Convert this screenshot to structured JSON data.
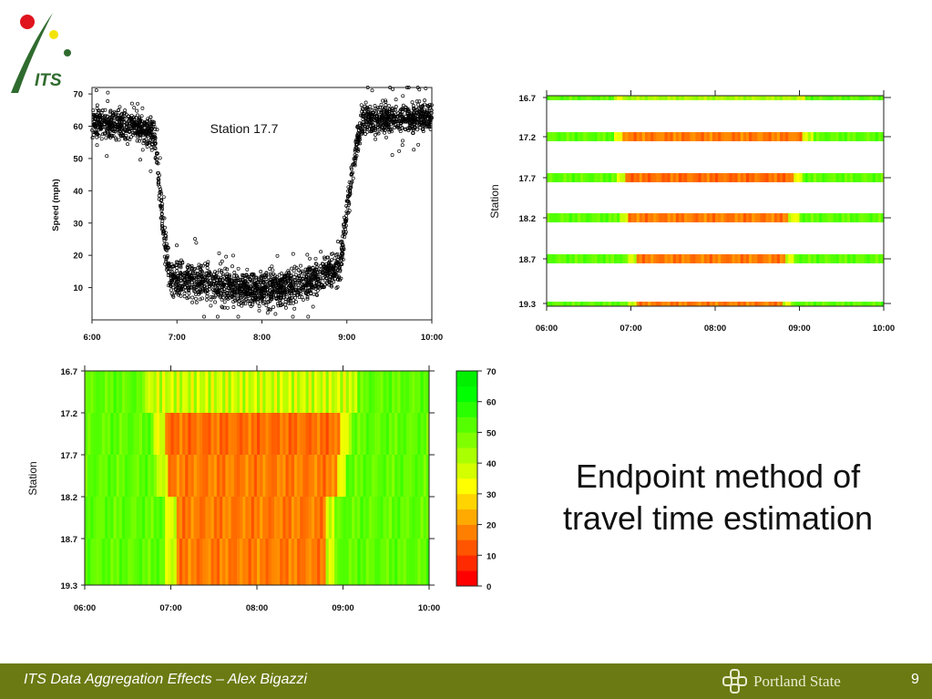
{
  "header": {
    "logo_text": "ITS"
  },
  "caption": {
    "line1": "Endpoint method of",
    "line2": "travel time estimation"
  },
  "footer": {
    "title": "ITS Data Aggregation Effects – Alex Bigazzi",
    "logo_text": "Portland State",
    "page": "9"
  },
  "colors": {
    "footer_bg": "#6b7a12",
    "logo_red": "#e0141e",
    "logo_yellow": "#f2e40a",
    "logo_green": "#2f6b2e"
  },
  "chart_data": [
    {
      "type": "scatter",
      "title": "Station 17.7",
      "ylabel": "Speed (mph)",
      "xlabel": "",
      "x_ticks": [
        "6:00",
        "7:00",
        "8:00",
        "9:00",
        "10:00"
      ],
      "y_ticks": [
        "10",
        "20",
        "30",
        "40",
        "50",
        "60",
        "70"
      ],
      "xlim": [
        "6:00",
        "10:00"
      ],
      "ylim": [
        0,
        72
      ],
      "profile": [
        {
          "time": "6:00",
          "speed": 61
        },
        {
          "time": "6:30",
          "speed": 60
        },
        {
          "time": "6:44",
          "speed": 58
        },
        {
          "time": "6:50",
          "speed": 30
        },
        {
          "time": "6:55",
          "speed": 13
        },
        {
          "time": "7:30",
          "speed": 11
        },
        {
          "time": "8:00",
          "speed": 9
        },
        {
          "time": "8:30",
          "speed": 11
        },
        {
          "time": "8:55",
          "speed": 16
        },
        {
          "time": "9:05",
          "speed": 50
        },
        {
          "time": "9:10",
          "speed": 62
        },
        {
          "time": "10:00",
          "speed": 63
        }
      ]
    },
    {
      "type": "heatmap",
      "variant": "stations-only",
      "ylabel": "Station",
      "x_ticks": [
        "06:00",
        "07:00",
        "08:00",
        "09:00",
        "10:00"
      ],
      "stations": [
        "16.7",
        "17.2",
        "17.7",
        "18.2",
        "18.7",
        "19.3"
      ],
      "congestion": [
        {
          "station": "16.7",
          "start": "06:50",
          "end": "09:00",
          "min_speed": 40
        },
        {
          "station": "17.2",
          "start": "06:50",
          "end": "09:05",
          "min_speed": 10
        },
        {
          "station": "17.7",
          "start": "06:52",
          "end": "08:58",
          "min_speed": 8
        },
        {
          "station": "18.2",
          "start": "06:54",
          "end": "08:55",
          "min_speed": 10
        },
        {
          "station": "18.7",
          "start": "07:00",
          "end": "08:52",
          "min_speed": 10
        },
        {
          "station": "19.3",
          "start": "07:00",
          "end": "08:50",
          "min_speed": 10
        }
      ]
    },
    {
      "type": "heatmap",
      "variant": "interpolated",
      "ylabel": "Station",
      "x_ticks": [
        "06:00",
        "07:00",
        "08:00",
        "09:00",
        "10:00"
      ],
      "stations": [
        "16.7",
        "17.2",
        "17.7",
        "18.2",
        "18.7",
        "19.3"
      ],
      "congestion": [
        {
          "station": "16.7",
          "start": "06:45",
          "end": "09:05",
          "min_speed": 40
        },
        {
          "station": "17.2",
          "start": "06:48",
          "end": "09:05",
          "min_speed": 10
        },
        {
          "station": "17.7",
          "start": "06:51",
          "end": "09:01",
          "min_speed": 8
        },
        {
          "station": "18.2",
          "start": "06:53",
          "end": "08:58",
          "min_speed": 10
        },
        {
          "station": "18.7",
          "start": "06:59",
          "end": "08:50",
          "min_speed": 10
        },
        {
          "station": "19.3",
          "start": "06:59",
          "end": "08:50",
          "min_speed": 10
        }
      ],
      "colorbar": {
        "ticks": [
          "0",
          "10",
          "20",
          "30",
          "40",
          "50",
          "60",
          "70"
        ],
        "colors": [
          "#ff0000",
          "#ff2a00",
          "#ff5500",
          "#ff8000",
          "#ffaa00",
          "#ffd400",
          "#ffff00",
          "#d4ff00",
          "#aaff00",
          "#80ff00",
          "#55ff00",
          "#2aff00",
          "#00ff00",
          "#00f000"
        ]
      }
    }
  ]
}
